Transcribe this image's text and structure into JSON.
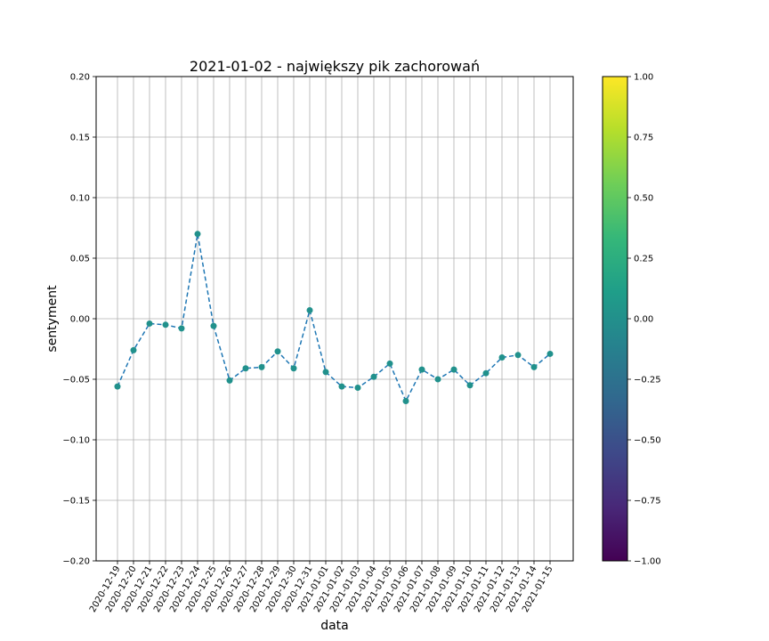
{
  "chart_data": {
    "type": "scatter",
    "title": "2021-01-02 - największy pik zachorowań",
    "xlabel": "data",
    "ylabel": "sentyment",
    "ylim": [
      -0.2,
      0.2
    ],
    "yticks": [
      "0.20",
      "0.15",
      "0.10",
      "0.05",
      "0.00",
      "−0.05",
      "−0.10",
      "−0.15",
      "−0.20"
    ],
    "ytick_values": [
      0.2,
      0.15,
      0.1,
      0.05,
      0.0,
      -0.05,
      -0.1,
      -0.15,
      -0.2
    ],
    "grid": true,
    "line_style": "dashed",
    "marker_color": "#21918c",
    "line_color": "#1f77b4",
    "categories": [
      "2020-12-19",
      "2020-12-20",
      "2020-12-21",
      "2020-12-22",
      "2020-12-23",
      "2020-12-24",
      "2020-12-25",
      "2020-12-26",
      "2020-12-27",
      "2020-12-28",
      "2020-12-29",
      "2020-12-30",
      "2020-12-31",
      "2021-01-01",
      "2021-01-02",
      "2021-01-03",
      "2021-01-04",
      "2021-01-05",
      "2021-01-06",
      "2021-01-07",
      "2021-01-08",
      "2021-01-09",
      "2021-01-10",
      "2021-01-11",
      "2021-01-12",
      "2021-01-13",
      "2021-01-14",
      "2021-01-15"
    ],
    "values": [
      -0.056,
      -0.026,
      -0.004,
      -0.005,
      -0.008,
      0.07,
      -0.006,
      -0.051,
      -0.041,
      -0.04,
      -0.027,
      -0.041,
      0.007,
      -0.044,
      -0.056,
      -0.057,
      -0.048,
      -0.037,
      -0.068,
      -0.042,
      -0.05,
      -0.042,
      -0.055,
      -0.045,
      -0.032,
      -0.03,
      -0.04,
      -0.029
    ],
    "colorbar": {
      "colormap": "viridis",
      "range": [
        -1.0,
        1.0
      ],
      "ticks": [
        "1.00",
        "0.75",
        "0.50",
        "0.25",
        "0.00",
        "−0.25",
        "−0.50",
        "−0.75",
        "−1.00"
      ],
      "tick_values": [
        1.0,
        0.75,
        0.5,
        0.25,
        0.0,
        -0.25,
        -0.5,
        -0.75,
        -1.0
      ],
      "stops": [
        "#440154",
        "#482878",
        "#3e4989",
        "#31688e",
        "#26828e",
        "#1f9e89",
        "#35b779",
        "#6ece58",
        "#b5de2b",
        "#fde725"
      ]
    }
  }
}
